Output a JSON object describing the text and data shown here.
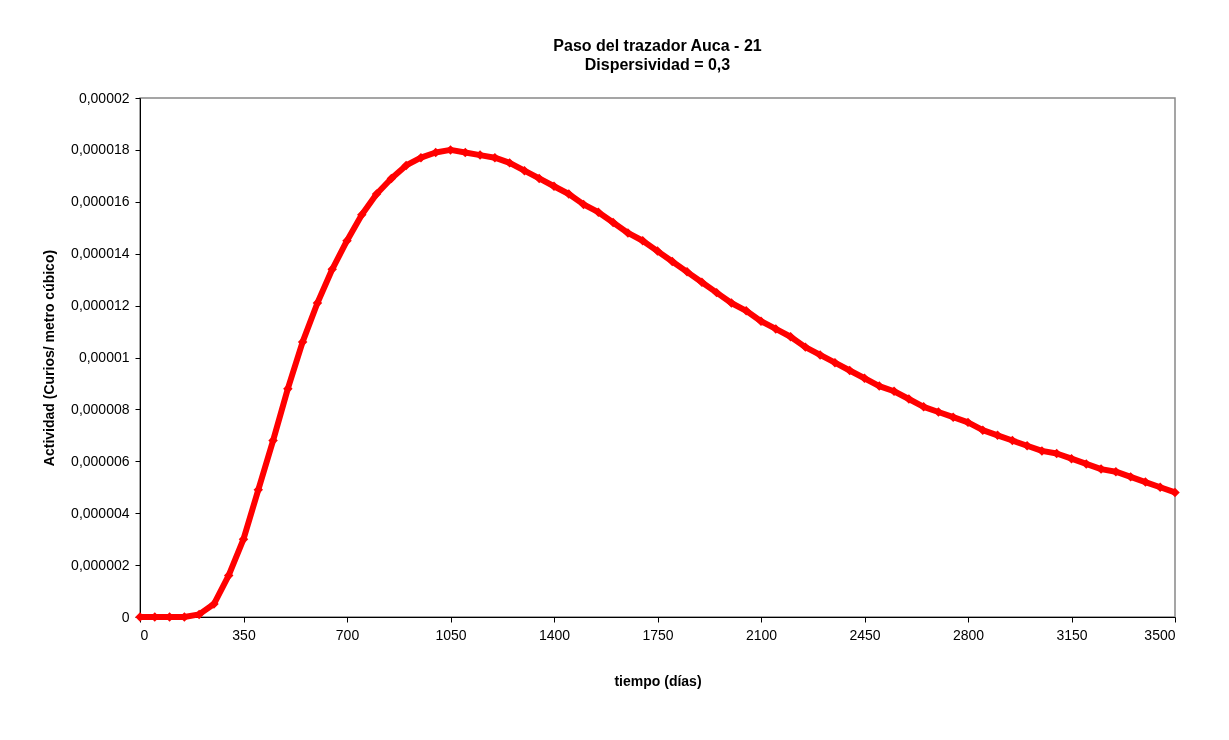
{
  "chart_data": {
    "type": "line",
    "title": "Paso del trazador Auca - 21",
    "subtitle": "Dispersividad = 0,3",
    "xlabel": "tiempo (días)",
    "ylabel": "Actividad (Curios/ metro cúbico)",
    "x": [
      0,
      50,
      100,
      150,
      200,
      250,
      300,
      350,
      400,
      450,
      500,
      550,
      600,
      650,
      700,
      750,
      800,
      850,
      900,
      950,
      1000,
      1050,
      1100,
      1150,
      1200,
      1250,
      1300,
      1350,
      1400,
      1450,
      1500,
      1550,
      1600,
      1650,
      1700,
      1750,
      1800,
      1850,
      1900,
      1950,
      2000,
      2050,
      2100,
      2150,
      2200,
      2250,
      2300,
      2350,
      2400,
      2450,
      2500,
      2550,
      2600,
      2650,
      2700,
      2750,
      2800,
      2850,
      2900,
      2950,
      3000,
      3050,
      3100,
      3150,
      3200,
      3250,
      3300,
      3350,
      3400,
      3450,
      3500
    ],
    "series": [
      {
        "color": "#ff0000",
        "values": [
          0,
          0,
          0,
          0,
          1e-07,
          5e-07,
          1.6e-06,
          3e-06,
          4.9e-06,
          6.8e-06,
          8.8e-06,
          1.06e-05,
          1.21e-05,
          1.34e-05,
          1.45e-05,
          1.55e-05,
          1.63e-05,
          1.69e-05,
          1.74e-05,
          1.77e-05,
          1.79e-05,
          1.8e-05,
          1.79e-05,
          1.78e-05,
          1.77e-05,
          1.75e-05,
          1.72e-05,
          1.69e-05,
          1.66e-05,
          1.63e-05,
          1.59e-05,
          1.56e-05,
          1.52e-05,
          1.48e-05,
          1.45e-05,
          1.41e-05,
          1.37e-05,
          1.33e-05,
          1.29e-05,
          1.25e-05,
          1.21e-05,
          1.18e-05,
          1.14e-05,
          1.11e-05,
          1.08e-05,
          1.04e-05,
          1.01e-05,
          9.8e-06,
          9.5e-06,
          9.2e-06,
          8.9e-06,
          8.7e-06,
          8.4e-06,
          8.1e-06,
          7.9e-06,
          7.7e-06,
          7.5e-06,
          7.2e-06,
          7e-06,
          6.8e-06,
          6.6e-06,
          6.4e-06,
          6.3e-06,
          6.1e-06,
          5.9e-06,
          5.7e-06,
          5.6e-06,
          5.4e-06,
          5.2e-06,
          5e-06,
          4.8e-06
        ]
      }
    ],
    "xlim": [
      0,
      3500
    ],
    "xticks": [
      0,
      350,
      700,
      1050,
      1400,
      1750,
      2100,
      2450,
      2800,
      3150,
      3500
    ],
    "ylim": [
      0,
      2e-05
    ],
    "yticks": [
      0,
      {
        "value": 2e-06,
        "label": "0,000002"
      },
      {
        "value": 4e-06,
        "label": "0,000004"
      },
      {
        "value": 6e-06,
        "label": "0,000006"
      },
      {
        "value": 8e-06,
        "label": "0,000008"
      },
      {
        "value": 1e-05,
        "label": "0,00001"
      },
      {
        "value": 1.2e-05,
        "label": "0,000012"
      },
      {
        "value": 1.4e-05,
        "label": "0,000014"
      },
      {
        "value": 1.6e-05,
        "label": "0,000016"
      },
      {
        "value": 1.8e-05,
        "label": "0,000018"
      },
      {
        "value": 2e-05,
        "label": "0,00002"
      }
    ],
    "grid": false,
    "marker": "diamond",
    "line_style": "solid"
  }
}
